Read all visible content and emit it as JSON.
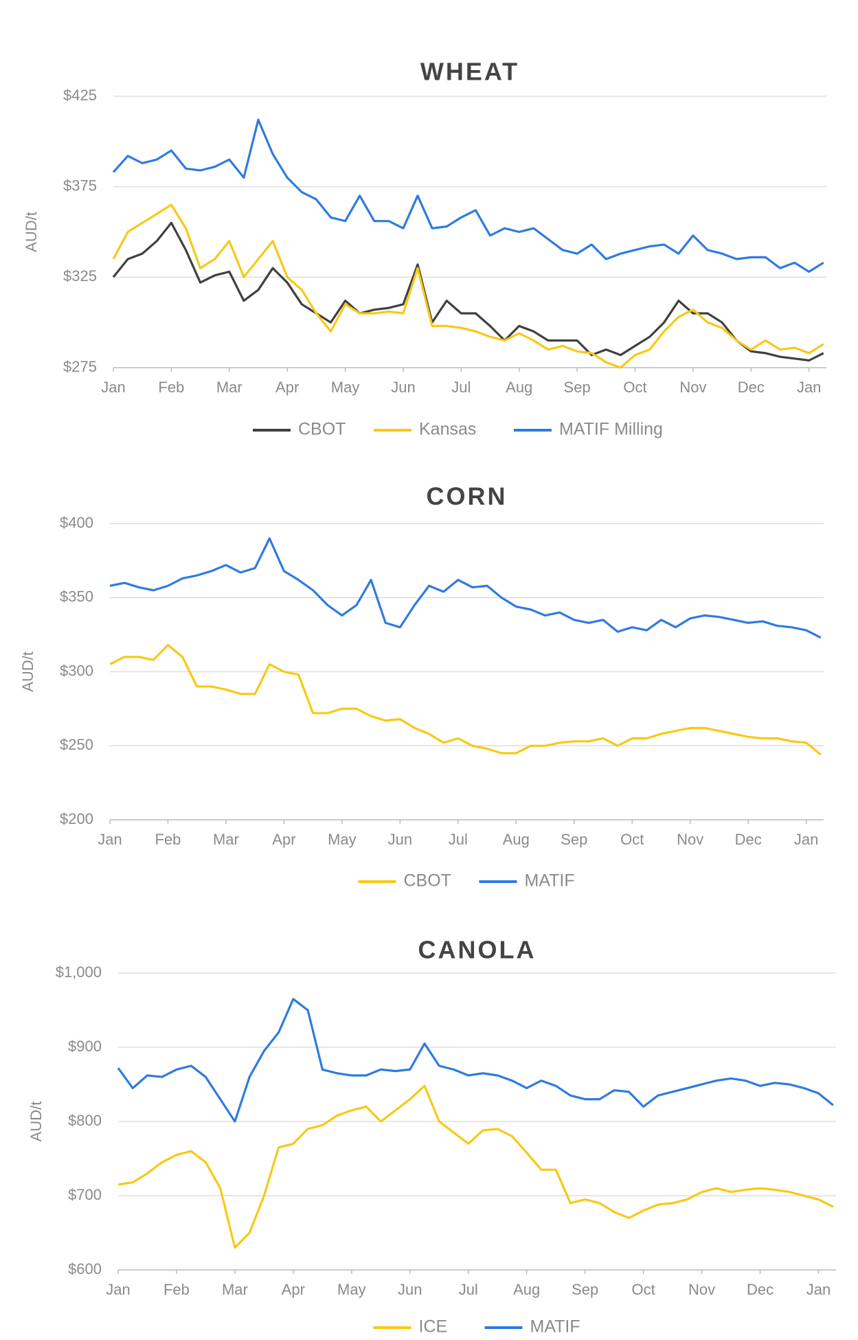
{
  "chart_data": [
    {
      "type": "line",
      "title": "WHEAT",
      "y_label": "AUD/t",
      "x": [
        0,
        0.25,
        0.5,
        0.75,
        1,
        1.25,
        1.5,
        1.75,
        2,
        2.25,
        2.5,
        2.75,
        3,
        3.25,
        3.5,
        3.75,
        4,
        4.25,
        4.5,
        4.75,
        5,
        5.25,
        5.5,
        5.75,
        6,
        6.25,
        6.5,
        6.75,
        7,
        7.25,
        7.5,
        7.75,
        8,
        8.25,
        8.5,
        8.75,
        9,
        9.25,
        9.5,
        9.75,
        10,
        10.25,
        10.5,
        10.75,
        11,
        11.25,
        11.5,
        11.75,
        12,
        12.25
      ],
      "xlim": [
        0,
        12.3
      ],
      "xticks": [
        {
          "value": 0,
          "label": "Jan"
        },
        {
          "value": 1,
          "label": "Feb"
        },
        {
          "value": 2,
          "label": "Mar"
        },
        {
          "value": 3,
          "label": "Apr"
        },
        {
          "value": 4,
          "label": "May"
        },
        {
          "value": 5,
          "label": "Jun"
        },
        {
          "value": 6,
          "label": "Jul"
        },
        {
          "value": 7,
          "label": "Aug"
        },
        {
          "value": 8,
          "label": "Sep"
        },
        {
          "value": 9,
          "label": "Oct"
        },
        {
          "value": 10,
          "label": "Nov"
        },
        {
          "value": 11,
          "label": "Dec"
        },
        {
          "value": 12,
          "label": "Jan"
        }
      ],
      "ylim": [
        275,
        425
      ],
      "yticks": [
        {
          "value": 275,
          "label": "$275"
        },
        {
          "value": 325,
          "label": "$325"
        },
        {
          "value": 375,
          "label": "$375"
        },
        {
          "value": 425,
          "label": "$425"
        }
      ],
      "grid": true,
      "series": [
        {
          "name": "CBOT",
          "color": "#404040",
          "values": [
            325,
            335,
            338,
            345,
            355,
            340,
            322,
            326,
            328,
            312,
            318,
            330,
            322,
            310,
            305,
            300,
            312,
            305,
            307,
            308,
            310,
            332,
            300,
            312,
            305,
            305,
            298,
            290,
            298,
            295,
            290,
            290,
            290,
            282,
            285,
            282,
            287,
            292,
            300,
            312,
            305,
            305,
            300,
            290,
            284,
            283,
            281,
            280,
            279,
            283
          ]
        },
        {
          "name": "Kansas",
          "color": "#f8c915",
          "values": [
            335,
            350,
            355,
            360,
            365,
            352,
            330,
            335,
            345,
            325,
            335,
            345,
            325,
            318,
            305,
            295,
            310,
            305,
            305,
            306,
            305,
            330,
            298,
            298,
            297,
            295,
            292,
            290,
            294,
            290,
            285,
            287,
            284,
            283,
            278,
            275,
            282,
            285,
            295,
            303,
            307,
            300,
            297,
            290,
            285,
            290,
            285,
            286,
            283,
            288
          ]
        },
        {
          "name": "MATIF Milling",
          "color": "#2f7be0",
          "values": [
            383,
            392,
            388,
            390,
            395,
            385,
            384,
            386,
            390,
            380,
            412,
            393,
            380,
            372,
            368,
            358,
            356,
            370,
            356,
            356,
            352,
            370,
            352,
            353,
            358,
            362,
            348,
            352,
            350,
            352,
            346,
            340,
            338,
            343,
            335,
            338,
            340,
            342,
            343,
            338,
            348,
            340,
            338,
            335,
            336,
            336,
            330,
            333,
            328,
            333
          ]
        }
      ]
    },
    {
      "type": "line",
      "title": "CORN",
      "y_label": "AUD/t",
      "x": [
        0,
        0.25,
        0.5,
        0.75,
        1,
        1.25,
        1.5,
        1.75,
        2,
        2.25,
        2.5,
        2.75,
        3,
        3.25,
        3.5,
        3.75,
        4,
        4.25,
        4.5,
        4.75,
        5,
        5.25,
        5.5,
        5.75,
        6,
        6.25,
        6.5,
        6.75,
        7,
        7.25,
        7.5,
        7.75,
        8,
        8.25,
        8.5,
        8.75,
        9,
        9.25,
        9.5,
        9.75,
        10,
        10.25,
        10.5,
        10.75,
        11,
        11.25,
        11.5,
        11.75,
        12,
        12.25
      ],
      "xlim": [
        0,
        12.3
      ],
      "xticks": [
        {
          "value": 0,
          "label": "Jan"
        },
        {
          "value": 1,
          "label": "Feb"
        },
        {
          "value": 2,
          "label": "Mar"
        },
        {
          "value": 3,
          "label": "Apr"
        },
        {
          "value": 4,
          "label": "May"
        },
        {
          "value": 5,
          "label": "Jun"
        },
        {
          "value": 6,
          "label": "Jul"
        },
        {
          "value": 7,
          "label": "Aug"
        },
        {
          "value": 8,
          "label": "Sep"
        },
        {
          "value": 9,
          "label": "Oct"
        },
        {
          "value": 10,
          "label": "Nov"
        },
        {
          "value": 11,
          "label": "Dec"
        },
        {
          "value": 12,
          "label": "Jan"
        }
      ],
      "ylim": [
        200,
        400
      ],
      "yticks": [
        {
          "value": 200,
          "label": "$200"
        },
        {
          "value": 250,
          "label": "$250"
        },
        {
          "value": 300,
          "label": "$300"
        },
        {
          "value": 350,
          "label": "$350"
        },
        {
          "value": 400,
          "label": "$400"
        }
      ],
      "grid": true,
      "series": [
        {
          "name": "CBOT",
          "color": "#f8c915",
          "values": [
            305,
            310,
            310,
            308,
            318,
            310,
            290,
            290,
            288,
            285,
            285,
            305,
            300,
            298,
            272,
            272,
            275,
            275,
            270,
            267,
            268,
            262,
            258,
            252,
            255,
            250,
            248,
            245,
            245,
            250,
            250,
            252,
            253,
            253,
            255,
            250,
            255,
            255,
            258,
            260,
            262,
            262,
            260,
            258,
            256,
            255,
            255,
            253,
            252,
            244
          ]
        },
        {
          "name": "MATIF",
          "color": "#2f7be0",
          "values": [
            358,
            360,
            357,
            355,
            358,
            363,
            365,
            368,
            372,
            367,
            370,
            390,
            368,
            362,
            355,
            345,
            338,
            345,
            362,
            333,
            330,
            345,
            358,
            354,
            362,
            357,
            358,
            350,
            344,
            342,
            338,
            340,
            335,
            333,
            335,
            327,
            330,
            328,
            335,
            330,
            336,
            338,
            337,
            335,
            333,
            334,
            331,
            330,
            328,
            323
          ]
        }
      ]
    },
    {
      "type": "line",
      "title": "CANOLA",
      "y_label": "AUD/t",
      "x": [
        0,
        0.25,
        0.5,
        0.75,
        1,
        1.25,
        1.5,
        1.75,
        2,
        2.25,
        2.5,
        2.75,
        3,
        3.25,
        3.5,
        3.75,
        4,
        4.25,
        4.5,
        4.75,
        5,
        5.25,
        5.5,
        5.75,
        6,
        6.25,
        6.5,
        6.75,
        7,
        7.25,
        7.5,
        7.75,
        8,
        8.25,
        8.5,
        8.75,
        9,
        9.25,
        9.5,
        9.75,
        10,
        10.25,
        10.5,
        10.75,
        11,
        11.25,
        11.5,
        11.75,
        12,
        12.25
      ],
      "xlim": [
        0,
        12.3
      ],
      "xticks": [
        {
          "value": 0,
          "label": "Jan"
        },
        {
          "value": 1,
          "label": "Feb"
        },
        {
          "value": 2,
          "label": "Mar"
        },
        {
          "value": 3,
          "label": "Apr"
        },
        {
          "value": 4,
          "label": "May"
        },
        {
          "value": 5,
          "label": "Jun"
        },
        {
          "value": 6,
          "label": "Jul"
        },
        {
          "value": 7,
          "label": "Aug"
        },
        {
          "value": 8,
          "label": "Sep"
        },
        {
          "value": 9,
          "label": "Oct"
        },
        {
          "value": 10,
          "label": "Nov"
        },
        {
          "value": 11,
          "label": "Dec"
        },
        {
          "value": 12,
          "label": "Jan"
        }
      ],
      "ylim": [
        600,
        1000
      ],
      "yticks": [
        {
          "value": 600,
          "label": "$600"
        },
        {
          "value": 700,
          "label": "$700"
        },
        {
          "value": 800,
          "label": "$800"
        },
        {
          "value": 900,
          "label": "$900"
        },
        {
          "value": 1000,
          "label": "$1,000"
        }
      ],
      "grid": true,
      "series": [
        {
          "name": "ICE",
          "color": "#f8c915",
          "values": [
            715,
            718,
            730,
            745,
            755,
            760,
            745,
            710,
            630,
            650,
            700,
            765,
            770,
            790,
            795,
            808,
            815,
            820,
            800,
            815,
            830,
            848,
            800,
            785,
            770,
            788,
            790,
            780,
            758,
            735,
            735,
            690,
            695,
            690,
            678,
            670,
            680,
            688,
            690,
            695,
            705,
            710,
            705,
            708,
            710,
            708,
            705,
            700,
            695,
            685
          ]
        },
        {
          "name": "MATIF",
          "color": "#2f7be0",
          "values": [
            872,
            845,
            862,
            860,
            870,
            875,
            860,
            830,
            800,
            860,
            895,
            920,
            965,
            950,
            870,
            865,
            862,
            862,
            870,
            868,
            870,
            905,
            875,
            870,
            862,
            865,
            862,
            855,
            845,
            855,
            848,
            835,
            830,
            830,
            842,
            840,
            820,
            835,
            840,
            845,
            850,
            855,
            858,
            855,
            848,
            852,
            850,
            845,
            838,
            822
          ]
        }
      ]
    }
  ]
}
